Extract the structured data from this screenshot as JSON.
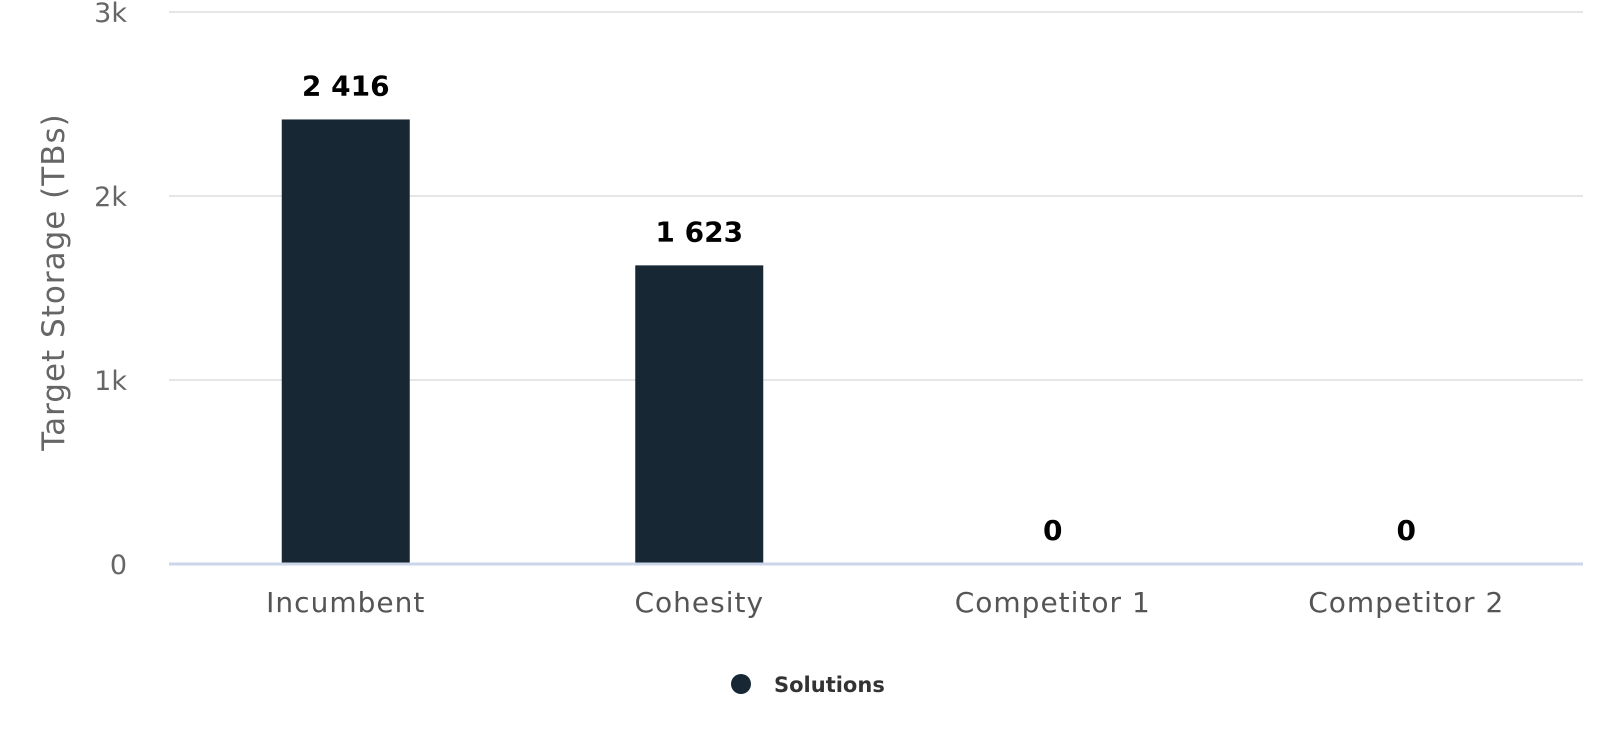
{
  "chart_data": {
    "type": "bar",
    "title": "",
    "xlabel": "",
    "ylabel": "Target Storage (TBs)",
    "categories": [
      "Incumbent",
      "Cohesity",
      "Competitor 1",
      "Competitor 2"
    ],
    "series": [
      {
        "name": "Solutions",
        "values": [
          2416,
          1623,
          0,
          0
        ],
        "labels": [
          "2 416",
          "1 623",
          "0",
          "0"
        ],
        "color": "#172733"
      }
    ],
    "ylim": [
      0,
      3000
    ],
    "yticks": [
      {
        "value": 0,
        "label": "0"
      },
      {
        "value": 1000,
        "label": "1k"
      },
      {
        "value": 2000,
        "label": "2k"
      },
      {
        "value": 3000,
        "label": "3k"
      }
    ],
    "grid": true,
    "legend_position": "bottom-center"
  },
  "colors": {
    "bar": "#172733",
    "grid": "#e6e6e6",
    "axis_line": "#ccd6eb"
  }
}
